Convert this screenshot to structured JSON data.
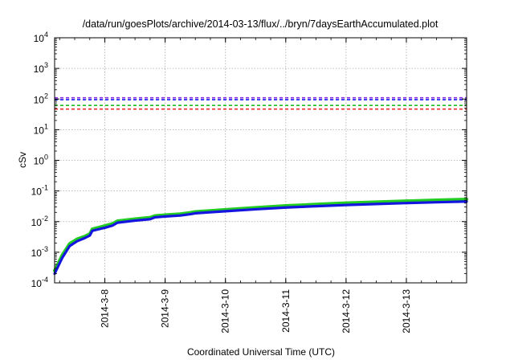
{
  "chart_data": {
    "type": "line",
    "title": "/data/run/goesPlots/archive/2014-03-13/flux/../bryn/7daysEarthAccumulated.plot",
    "xlabel": "Coordinated Universal Time (UTC)",
    "ylabel": "cSv",
    "yscale": "log",
    "ylim": [
      0.0001,
      10000
    ],
    "y_ticks": [
      {
        "value": 0.0001,
        "base": "10",
        "exp": "-4"
      },
      {
        "value": 0.001,
        "base": "10",
        "exp": "-3"
      },
      {
        "value": 0.01,
        "base": "10",
        "exp": "-2"
      },
      {
        "value": 0.1,
        "base": "10",
        "exp": "-1"
      },
      {
        "value": 1,
        "base": "10",
        "exp": "0"
      },
      {
        "value": 10,
        "base": "10",
        "exp": "1"
      },
      {
        "value": 100,
        "base": "10",
        "exp": "2"
      },
      {
        "value": 1000,
        "base": "10",
        "exp": "3"
      },
      {
        "value": 10000,
        "base": "10",
        "exp": "4"
      }
    ],
    "xlim": [
      "2014-03-07T04:00",
      "2014-03-13T23:59"
    ],
    "x_ticks": [
      "2014-3-8",
      "2014-3-9",
      "2014-3-10",
      "2014-3-11",
      "2014-3-12",
      "2014-3-13"
    ],
    "x_tick_dates": [
      "2014-03-08",
      "2014-03-09",
      "2014-03-10",
      "2014-03-11",
      "2014-03-12",
      "2014-03-13"
    ],
    "grid": true,
    "reference_lines": [
      {
        "value": 110,
        "color": "#8a2be2",
        "style": "dashed"
      },
      {
        "value": 95,
        "color": "#1a1aff",
        "style": "dashed"
      },
      {
        "value": 62,
        "color": "#22bb22",
        "style": "dashed"
      },
      {
        "value": 47,
        "color": "#ee2222",
        "style": "dashed"
      }
    ],
    "series": [
      {
        "color": "#22cc22",
        "x": [
          "2014-03-07T04:00",
          "2014-03-07T07:00",
          "2014-03-07T10:00",
          "2014-03-07T13:00",
          "2014-03-07T16:00",
          "2014-03-07T18:00",
          "2014-03-07T19:00",
          "2014-03-08T00:00",
          "2014-03-08T03:00",
          "2014-03-08T05:00",
          "2014-03-08T12:00",
          "2014-03-08T18:00",
          "2014-03-08T20:00",
          "2014-03-09T00:00",
          "2014-03-09T06:00",
          "2014-03-09T10:00",
          "2014-03-09T12:00",
          "2014-03-10T00:00",
          "2014-03-10T12:00",
          "2014-03-11T00:00",
          "2014-03-11T12:00",
          "2014-03-12T00:00",
          "2014-03-12T12:00",
          "2014-03-13T00:00",
          "2014-03-13T12:00",
          "2014-03-13T23:59"
        ],
        "values": [
          0.00025,
          0.0008,
          0.0019,
          0.0027,
          0.0033,
          0.004,
          0.0057,
          0.0073,
          0.0085,
          0.0105,
          0.0122,
          0.0136,
          0.0155,
          0.0165,
          0.0178,
          0.0196,
          0.021,
          0.0246,
          0.0285,
          0.033,
          0.0365,
          0.0405,
          0.0437,
          0.047,
          0.0505,
          0.0535
        ]
      },
      {
        "color": "#1515e0",
        "x": [
          "2014-03-07T04:00",
          "2014-03-07T07:00",
          "2014-03-07T10:00",
          "2014-03-07T13:00",
          "2014-03-07T16:00",
          "2014-03-07T18:00",
          "2014-03-07T19:00",
          "2014-03-08T00:00",
          "2014-03-08T03:00",
          "2014-03-08T05:00",
          "2014-03-08T12:00",
          "2014-03-08T18:00",
          "2014-03-08T20:00",
          "2014-03-09T00:00",
          "2014-03-09T06:00",
          "2014-03-09T10:00",
          "2014-03-09T12:00",
          "2014-03-10T00:00",
          "2014-03-10T12:00",
          "2014-03-11T00:00",
          "2014-03-11T12:00",
          "2014-03-12T00:00",
          "2014-03-12T12:00",
          "2014-03-13T00:00",
          "2014-03-13T12:00",
          "2014-03-13T23:59"
        ],
        "values": [
          0.0002,
          0.00065,
          0.0016,
          0.0023,
          0.0029,
          0.0035,
          0.005,
          0.0063,
          0.0074,
          0.0092,
          0.0108,
          0.012,
          0.0138,
          0.0147,
          0.0158,
          0.0174,
          0.0187,
          0.0218,
          0.0252,
          0.0288,
          0.0318,
          0.0348,
          0.0375,
          0.0402,
          0.0428,
          0.0452
        ]
      }
    ]
  }
}
